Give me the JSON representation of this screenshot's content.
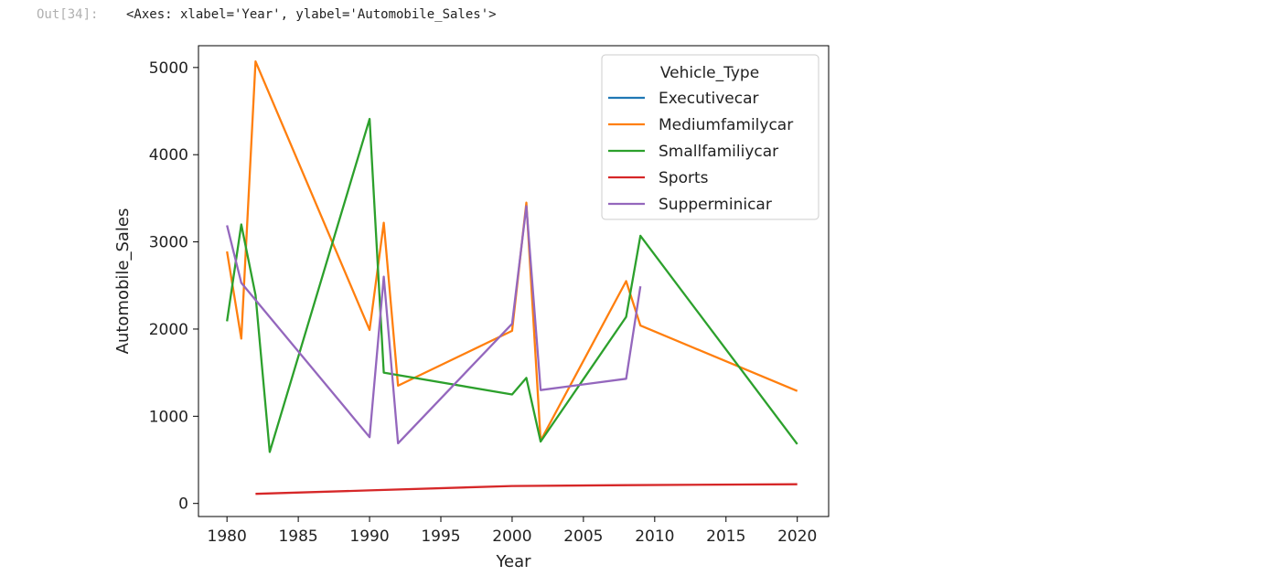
{
  "cell": {
    "prompt": "Out[34]:",
    "output": "<Axes: xlabel='Year', ylabel='Automobile_Sales'>"
  },
  "chart_data": {
    "type": "line",
    "title": "",
    "xlabel": "Year",
    "ylabel": "Automobile_Sales",
    "xlim": [
      1978,
      2022.2
    ],
    "ylim": [
      -150,
      5250
    ],
    "xticks": [
      1980,
      1985,
      1990,
      1995,
      2000,
      2005,
      2010,
      2015,
      2020
    ],
    "yticks": [
      0,
      1000,
      2000,
      3000,
      4000,
      5000
    ],
    "grid": false,
    "legend": {
      "title": "Vehicle_Type",
      "position": "top-right"
    },
    "series": [
      {
        "name": "Executivecar",
        "color": "#1f77b4",
        "points": []
      },
      {
        "name": "Mediumfamilycar",
        "color": "#ff7f0e",
        "points": [
          [
            1980,
            2890
          ],
          [
            1981,
            1890
          ],
          [
            1982,
            5070
          ],
          [
            1990,
            1990
          ],
          [
            1991,
            3220
          ],
          [
            1992,
            1350
          ],
          [
            2000,
            1980
          ],
          [
            2001,
            3450
          ],
          [
            2002,
            720
          ],
          [
            2008,
            2550
          ],
          [
            2009,
            2040
          ],
          [
            2020,
            1290
          ]
        ]
      },
      {
        "name": "Smallfamiliycar",
        "color": "#2ca02c",
        "points": [
          [
            1980,
            2090
          ],
          [
            1981,
            3200
          ],
          [
            1982,
            2390
          ],
          [
            1983,
            590
          ],
          [
            1990,
            4410
          ],
          [
            1991,
            1500
          ],
          [
            2000,
            1250
          ],
          [
            2001,
            1440
          ],
          [
            2002,
            710
          ],
          [
            2008,
            2140
          ],
          [
            2009,
            3070
          ],
          [
            2020,
            680
          ]
        ]
      },
      {
        "name": "Sports",
        "color": "#d62728",
        "points": [
          [
            1982,
            110
          ],
          [
            1990,
            150
          ],
          [
            2000,
            200
          ],
          [
            2008,
            210
          ],
          [
            2020,
            220
          ]
        ]
      },
      {
        "name": "Supperminicar",
        "color": "#9467bd",
        "points": [
          [
            1980,
            3190
          ],
          [
            1981,
            2530
          ],
          [
            1990,
            760
          ],
          [
            1991,
            2600
          ],
          [
            1992,
            690
          ],
          [
            2000,
            2060
          ],
          [
            2001,
            3410
          ],
          [
            2002,
            1300
          ],
          [
            2008,
            1430
          ],
          [
            2009,
            2490
          ]
        ]
      }
    ]
  }
}
